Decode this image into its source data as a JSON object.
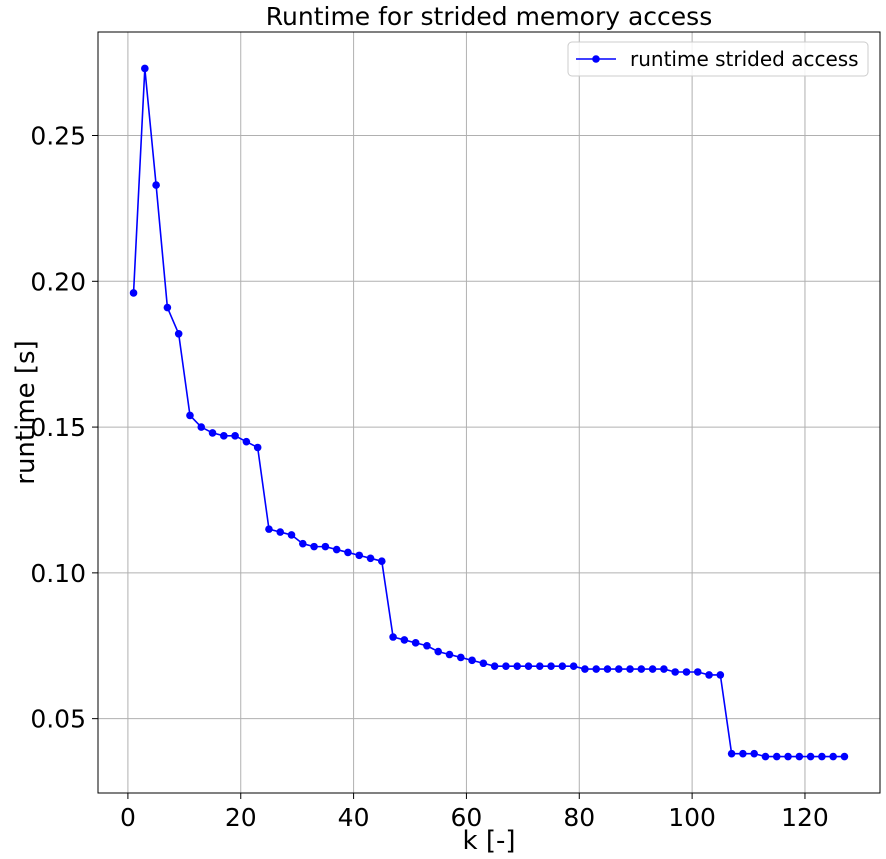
{
  "chart_data": {
    "type": "line",
    "title": "Runtime for strided memory access",
    "xlabel": "k [-]",
    "ylabel": "runtime [s]",
    "xlim": [
      -5.3,
      133.3
    ],
    "ylim": [
      0.0245,
      0.2855
    ],
    "xticks": [
      0,
      20,
      40,
      60,
      80,
      100,
      120
    ],
    "xtick_labels": [
      "0",
      "20",
      "40",
      "60",
      "80",
      "100",
      "120"
    ],
    "yticks": [
      0.05,
      0.1,
      0.15,
      0.2,
      0.25
    ],
    "ytick_labels": [
      "0.05",
      "0.10",
      "0.15",
      "0.20",
      "0.25"
    ],
    "grid": true,
    "legend_position": "top-right",
    "series": [
      {
        "name": "runtime strided access",
        "color": "#0000ff",
        "marker": "circle",
        "x": [
          1,
          3,
          5,
          7,
          9,
          11,
          13,
          15,
          17,
          19,
          21,
          23,
          25,
          27,
          29,
          31,
          33,
          35,
          37,
          39,
          41,
          43,
          45,
          47,
          49,
          51,
          53,
          55,
          57,
          59,
          61,
          63,
          65,
          67,
          69,
          71,
          73,
          75,
          77,
          79,
          81,
          83,
          85,
          87,
          89,
          91,
          93,
          95,
          97,
          99,
          101,
          103,
          105,
          107,
          109,
          111,
          113,
          115,
          117,
          119,
          121,
          123,
          125,
          127
        ],
        "values": [
          0.196,
          0.273,
          0.233,
          0.191,
          0.182,
          0.154,
          0.15,
          0.148,
          0.147,
          0.147,
          0.145,
          0.143,
          0.115,
          0.114,
          0.113,
          0.11,
          0.109,
          0.109,
          0.108,
          0.107,
          0.106,
          0.105,
          0.104,
          0.078,
          0.077,
          0.076,
          0.075,
          0.073,
          0.072,
          0.071,
          0.07,
          0.069,
          0.068,
          0.068,
          0.068,
          0.068,
          0.068,
          0.068,
          0.068,
          0.068,
          0.067,
          0.067,
          0.067,
          0.067,
          0.067,
          0.067,
          0.067,
          0.067,
          0.066,
          0.066,
          0.066,
          0.065,
          0.065,
          0.038,
          0.038,
          0.038,
          0.037,
          0.037,
          0.037,
          0.037,
          0.037,
          0.037,
          0.037,
          0.037
        ]
      }
    ]
  }
}
